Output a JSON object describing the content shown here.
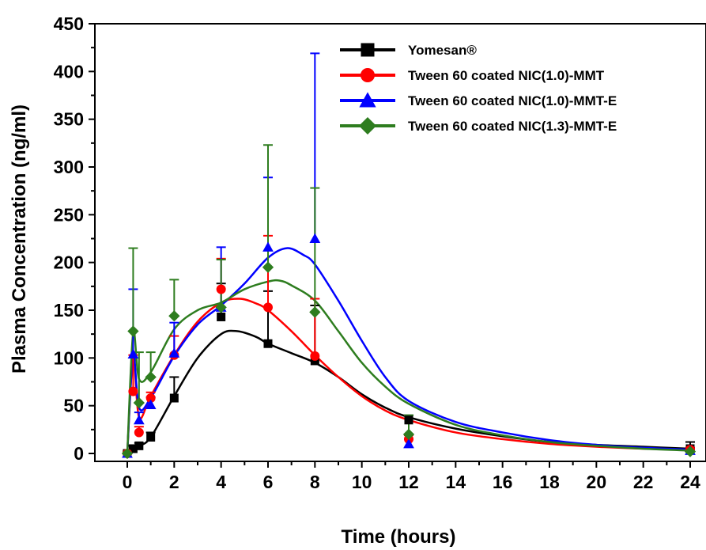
{
  "chart_data": {
    "type": "scatter",
    "xlabel": "Time (hours)",
    "ylabel": "Plasma Concentration (ng/ml)",
    "xlim": [
      -1,
      24.2
    ],
    "ylim": [
      -20,
      450
    ],
    "xticks": [
      0,
      2,
      4,
      6,
      8,
      10,
      12,
      14,
      16,
      18,
      20,
      22,
      24
    ],
    "yticks": [
      0,
      50,
      100,
      150,
      200,
      250,
      300,
      350,
      400,
      450
    ],
    "legend_position": "top-right",
    "series": [
      {
        "name": "Yomesan®",
        "color": "#000000",
        "marker": "square",
        "points": [
          {
            "x": 0,
            "y": 0,
            "err": 2
          },
          {
            "x": 0.25,
            "y": 5,
            "err": 3
          },
          {
            "x": 0.5,
            "y": 8,
            "err": 3
          },
          {
            "x": 1,
            "y": 17,
            "err": 5
          },
          {
            "x": 2,
            "y": 58,
            "err": 22
          },
          {
            "x": 4,
            "y": 143,
            "err": 35
          },
          {
            "x": 6,
            "y": 115,
            "err": 55
          },
          {
            "x": 8,
            "y": 97,
            "err": 58
          },
          {
            "x": 12,
            "y": 35,
            "err": 5
          },
          {
            "x": 24,
            "y": 5,
            "err": 7
          }
        ],
        "curve": [
          [
            0,
            0
          ],
          [
            0.25,
            5
          ],
          [
            0.5,
            8
          ],
          [
            1,
            17
          ],
          [
            2,
            60
          ],
          [
            3,
            100
          ],
          [
            4,
            125
          ],
          [
            4.7,
            128
          ],
          [
            5.5,
            122
          ],
          [
            6,
            115
          ],
          [
            7,
            105
          ],
          [
            8,
            95
          ],
          [
            9,
            80
          ],
          [
            10,
            62
          ],
          [
            11,
            48
          ],
          [
            12,
            38
          ],
          [
            14,
            26
          ],
          [
            16,
            18
          ],
          [
            18,
            12
          ],
          [
            20,
            9
          ],
          [
            22,
            7
          ],
          [
            24,
            5
          ]
        ]
      },
      {
        "name": "Tween 60 coated NIC(1.0)-MMT",
        "color": "#ff0000",
        "marker": "circle",
        "points": [
          {
            "x": 0,
            "y": 0,
            "err": 2
          },
          {
            "x": 0.25,
            "y": 65,
            "err": 38
          },
          {
            "x": 0.5,
            "y": 22,
            "err": 6
          },
          {
            "x": 1,
            "y": 58,
            "err": 6
          },
          {
            "x": 2,
            "y": 103,
            "err": 20
          },
          {
            "x": 4,
            "y": 172,
            "err": 32
          },
          {
            "x": 6,
            "y": 153,
            "err": 75
          },
          {
            "x": 8,
            "y": 102,
            "err": 60
          },
          {
            "x": 12,
            "y": 15,
            "err": 4
          },
          {
            "x": 24,
            "y": 4,
            "err": 2
          }
        ],
        "curve": [
          [
            0,
            0
          ],
          [
            0.25,
            101
          ],
          [
            0.5,
            38
          ],
          [
            1,
            60
          ],
          [
            2,
            103
          ],
          [
            3,
            138
          ],
          [
            4,
            158
          ],
          [
            4.8,
            162
          ],
          [
            5.5,
            157
          ],
          [
            6,
            150
          ],
          [
            7,
            128
          ],
          [
            8,
            103
          ],
          [
            9,
            80
          ],
          [
            10,
            60
          ],
          [
            11,
            45
          ],
          [
            12,
            35
          ],
          [
            14,
            22
          ],
          [
            16,
            15
          ],
          [
            18,
            10
          ],
          [
            20,
            7
          ],
          [
            22,
            5
          ],
          [
            24,
            4
          ]
        ]
      },
      {
        "name": "Tween 60 coated NIC(1.0)-MMT-E",
        "color": "#0000ff",
        "marker": "triangle",
        "points": [
          {
            "x": 0,
            "y": 0,
            "err": 2
          },
          {
            "x": 0.25,
            "y": 104,
            "err": 68
          },
          {
            "x": 0.5,
            "y": 35,
            "err": 8
          },
          {
            "x": 1,
            "y": 51,
            "err": 8
          },
          {
            "x": 2,
            "y": 105,
            "err": 32
          },
          {
            "x": 4,
            "y": 153,
            "err": 63
          },
          {
            "x": 6,
            "y": 216,
            "err": 73
          },
          {
            "x": 8,
            "y": 225,
            "err": 194
          },
          {
            "x": 12,
            "y": 10,
            "err": 5
          },
          {
            "x": 24,
            "y": 3,
            "err": 2
          }
        ],
        "curve": [
          [
            0,
            0
          ],
          [
            0.25,
            104
          ],
          [
            0.5,
            48
          ],
          [
            1,
            58
          ],
          [
            2,
            102
          ],
          [
            3,
            135
          ],
          [
            4,
            155
          ],
          [
            5,
            178
          ],
          [
            6,
            205
          ],
          [
            6.8,
            215
          ],
          [
            7.5,
            208
          ],
          [
            8,
            198
          ],
          [
            9,
            160
          ],
          [
            10,
            118
          ],
          [
            11,
            80
          ],
          [
            12,
            55
          ],
          [
            14,
            33
          ],
          [
            16,
            22
          ],
          [
            18,
            14
          ],
          [
            20,
            9
          ],
          [
            22,
            6
          ],
          [
            24,
            4
          ]
        ]
      },
      {
        "name": "Tween 60 coated NIC(1.3)-MMT-E",
        "color": "#2e7d1f",
        "marker": "diamond",
        "points": [
          {
            "x": 0,
            "y": 0,
            "err": 2
          },
          {
            "x": 0.25,
            "y": 128,
            "err": 87
          },
          {
            "x": 0.5,
            "y": 53,
            "err": 53
          },
          {
            "x": 1,
            "y": 80,
            "err": 26
          },
          {
            "x": 2,
            "y": 144,
            "err": 38
          },
          {
            "x": 4,
            "y": 153,
            "err": 50
          },
          {
            "x": 6,
            "y": 195,
            "err": 128
          },
          {
            "x": 8,
            "y": 148,
            "err": 130
          },
          {
            "x": 12,
            "y": 20,
            "err": 20
          },
          {
            "x": 24,
            "y": 2,
            "err": 2
          }
        ],
        "curve": [
          [
            0,
            0
          ],
          [
            0.25,
            126
          ],
          [
            0.5,
            78
          ],
          [
            1,
            85
          ],
          [
            2,
            130
          ],
          [
            3,
            150
          ],
          [
            4,
            158
          ],
          [
            5,
            172
          ],
          [
            6,
            180
          ],
          [
            6.5,
            181
          ],
          [
            7,
            176
          ],
          [
            8,
            160
          ],
          [
            9,
            128
          ],
          [
            10,
            95
          ],
          [
            11,
            70
          ],
          [
            12,
            52
          ],
          [
            14,
            30
          ],
          [
            16,
            19
          ],
          [
            18,
            12
          ],
          [
            20,
            8
          ],
          [
            22,
            5
          ],
          [
            24,
            3
          ]
        ]
      }
    ]
  }
}
